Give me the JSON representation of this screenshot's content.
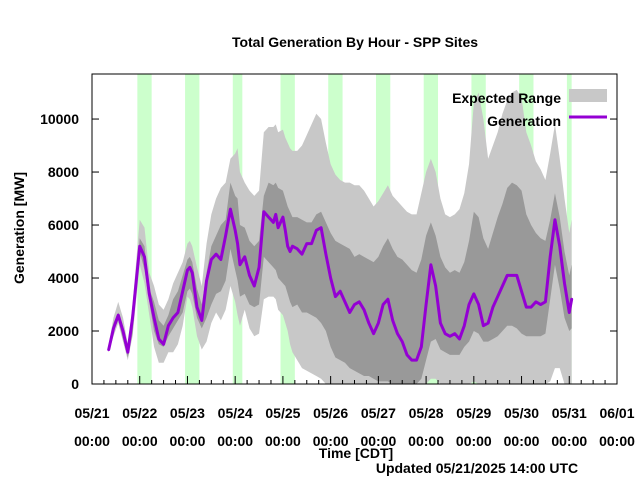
{
  "chart_data": {
    "type": "area",
    "title": "Total Generation By Hour - SPP Sites",
    "xlabel": "Time [CDT]",
    "ylabel": "Generation [MW]",
    "updated": "Updated 05/21/2025 14:00 UTC",
    "xlim": [
      0,
      11
    ],
    "ylim": [
      0,
      11700
    ],
    "x_units": "days since 05/21 00:00",
    "y_ticks": [
      0,
      2000,
      4000,
      6000,
      8000,
      10000
    ],
    "x_ticks": [
      {
        "x": 0,
        "date": "05/21",
        "time": "00:00"
      },
      {
        "x": 1,
        "date": "05/22",
        "time": "00:00"
      },
      {
        "x": 2,
        "date": "05/23",
        "time": "00:00"
      },
      {
        "x": 3,
        "date": "05/24",
        "time": "00:00"
      },
      {
        "x": 4,
        "date": "05/25",
        "time": "00:00"
      },
      {
        "x": 5,
        "date": "05/26",
        "time": "00:00"
      },
      {
        "x": 6,
        "date": "05/27",
        "time": "00:00"
      },
      {
        "x": 7,
        "date": "05/28",
        "time": "00:00"
      },
      {
        "x": 8,
        "date": "05/29",
        "time": "00:00"
      },
      {
        "x": 9,
        "date": "05/30",
        "time": "00:00"
      },
      {
        "x": 10,
        "date": "05/31",
        "time": "00:00"
      },
      {
        "x": 11,
        "date": "06/01",
        "time": "00:00"
      }
    ],
    "legend": {
      "placement": "top-right",
      "entries": [
        "Expected Range",
        "Generation"
      ]
    },
    "colors": {
      "outer_band": "#c8c8c8",
      "inner_band": "#999999",
      "generation": "#9400d3",
      "night_shade": "#ccffcc"
    },
    "shaded_intervals": [
      [
        0.95,
        1.25
      ],
      [
        1.95,
        2.25
      ],
      [
        2.95,
        3.15
      ],
      [
        3.95,
        4.25
      ],
      [
        4.95,
        5.25
      ],
      [
        5.95,
        6.25
      ],
      [
        6.95,
        7.25
      ],
      [
        7.95,
        8.25
      ],
      [
        8.95,
        9.25
      ],
      [
        9.95,
        10.05
      ]
    ],
    "series": [
      {
        "name": "Generation",
        "x": [
          0.35,
          0.45,
          0.55,
          0.65,
          0.75,
          0.85,
          1.0,
          1.1,
          1.2,
          1.3,
          1.4,
          1.5,
          1.6,
          1.7,
          1.8,
          1.9,
          2.0,
          2.05,
          2.1,
          2.2,
          2.3,
          2.4,
          2.5,
          2.6,
          2.7,
          2.8,
          2.9,
          3.0,
          3.05,
          3.1,
          3.2,
          3.3,
          3.4,
          3.5,
          3.6,
          3.7,
          3.8,
          3.85,
          3.9,
          4.0,
          4.05,
          4.1,
          4.15,
          4.2,
          4.3,
          4.4,
          4.5,
          4.6,
          4.7,
          4.8,
          4.9,
          5.0,
          5.1,
          5.2,
          5.3,
          5.4,
          5.5,
          5.6,
          5.7,
          5.8,
          5.9,
          6.0,
          6.1,
          6.2,
          6.3,
          6.4,
          6.5,
          6.6,
          6.7,
          6.8,
          6.9,
          7.0,
          7.1,
          7.2,
          7.3,
          7.4,
          7.5,
          7.6,
          7.7,
          7.8,
          7.9,
          8.0,
          8.1,
          8.2,
          8.3,
          8.4,
          8.5,
          8.6,
          8.7,
          8.8,
          8.9,
          9.0,
          9.1,
          9.2,
          9.3,
          9.4,
          9.5,
          9.6,
          9.7,
          9.8,
          9.9,
          10.0,
          10.05
        ],
        "values": [
          1300,
          2100,
          2600,
          2000,
          1200,
          2500,
          5200,
          4800,
          3400,
          2500,
          1700,
          1500,
          2200,
          2500,
          2700,
          3500,
          4300,
          4400,
          4200,
          2900,
          2400,
          3900,
          4700,
          4900,
          4700,
          5600,
          6600,
          5800,
          5300,
          4500,
          4800,
          4100,
          3700,
          4400,
          6500,
          6300,
          6100,
          6400,
          5900,
          6300,
          5800,
          5200,
          5000,
          5200,
          5100,
          4900,
          5300,
          5300,
          5800,
          5900,
          4900,
          4000,
          3300,
          3500,
          3100,
          2700,
          3000,
          3100,
          2800,
          2300,
          1900,
          2300,
          3000,
          3200,
          2400,
          1900,
          1600,
          1100,
          900,
          900,
          1400,
          3000,
          4500,
          3700,
          2300,
          1900,
          1800,
          1900,
          1700,
          2200,
          3000,
          3400,
          3000,
          2200,
          2300,
          2900,
          3300,
          3700,
          4100,
          4100,
          4100,
          3500,
          2900,
          2900,
          3100,
          3000,
          3100,
          4800,
          6200,
          5200,
          3800,
          2700,
          3200
        ]
      },
      {
        "name": "Expected Range",
        "x": [
          0.35,
          0.45,
          0.55,
          0.65,
          0.75,
          0.85,
          1.0,
          1.1,
          1.2,
          1.3,
          1.4,
          1.5,
          1.6,
          1.7,
          1.8,
          1.9,
          2.0,
          2.05,
          2.1,
          2.2,
          2.3,
          2.4,
          2.5,
          2.6,
          2.7,
          2.8,
          2.9,
          3.0,
          3.05,
          3.1,
          3.2,
          3.3,
          3.4,
          3.5,
          3.6,
          3.7,
          3.8,
          3.85,
          3.9,
          4.0,
          4.05,
          4.1,
          4.15,
          4.2,
          4.3,
          4.4,
          4.5,
          4.6,
          4.7,
          4.8,
          4.9,
          5.0,
          5.1,
          5.2,
          5.3,
          5.4,
          5.5,
          5.6,
          5.7,
          5.8,
          5.9,
          6.0,
          6.1,
          6.2,
          6.3,
          6.4,
          6.5,
          6.6,
          6.7,
          6.8,
          6.9,
          7.0,
          7.1,
          7.2,
          7.3,
          7.4,
          7.5,
          7.6,
          7.7,
          7.8,
          7.9,
          8.0,
          8.1,
          8.2,
          8.3,
          8.4,
          8.5,
          8.6,
          8.7,
          8.8,
          8.9,
          9.0,
          9.1,
          9.2,
          9.3,
          9.4,
          9.5,
          9.6,
          9.7,
          9.8,
          9.9,
          10.0,
          10.05
        ],
        "outer_low": [
          1200,
          1800,
          2300,
          1600,
          900,
          1800,
          4500,
          3800,
          2600,
          1400,
          800,
          800,
          1200,
          1200,
          1500,
          2200,
          3300,
          3200,
          2900,
          1800,
          1300,
          1600,
          2300,
          2700,
          2400,
          2800,
          3700,
          3100,
          2600,
          2200,
          2800,
          2100,
          1800,
          1900,
          3200,
          3300,
          3300,
          3200,
          2800,
          2600,
          2300,
          2000,
          1500,
          1200,
          900,
          600,
          500,
          400,
          300,
          200,
          0,
          0,
          0,
          0,
          0,
          0,
          0,
          0,
          0,
          0,
          0,
          0,
          0,
          0,
          0,
          0,
          0,
          0,
          0,
          0,
          0,
          0,
          200,
          200,
          0,
          0,
          0,
          0,
          0,
          0,
          0,
          100,
          0,
          0,
          0,
          0,
          0,
          0,
          0,
          0,
          0,
          0,
          0,
          0,
          0,
          0,
          0,
          100,
          600,
          600,
          0,
          0,
          0
        ],
        "inner_low": [
          1200,
          2000,
          2400,
          1700,
          1000,
          1900,
          5000,
          4300,
          3100,
          2000,
          1500,
          1400,
          1800,
          2100,
          2400,
          2700,
          3500,
          3600,
          3400,
          2500,
          2100,
          2500,
          3000,
          3400,
          3500,
          3900,
          5100,
          4300,
          3900,
          3300,
          3400,
          3000,
          2900,
          3000,
          4800,
          4600,
          4400,
          4300,
          4000,
          3800,
          3700,
          3400,
          3100,
          2900,
          3000,
          2700,
          2700,
          2600,
          2500,
          2300,
          2000,
          1400,
          1000,
          900,
          800,
          600,
          500,
          400,
          300,
          300,
          200,
          100,
          100,
          100,
          0,
          0,
          0,
          0,
          0,
          0,
          200,
          900,
          1600,
          1700,
          1300,
          1200,
          1100,
          1100,
          1100,
          1400,
          1600,
          2000,
          1900,
          1600,
          1600,
          1700,
          1800,
          2000,
          2200,
          2200,
          2100,
          1900,
          1800,
          1800,
          1800,
          1800,
          1900,
          3200,
          4500,
          3600,
          2500,
          2000,
          2100
        ],
        "inner_high": [
          1400,
          2300,
          2700,
          2200,
          1300,
          2700,
          5500,
          5200,
          3600,
          3100,
          2400,
          2200,
          2600,
          3200,
          3500,
          4100,
          4700,
          4800,
          4600,
          3600,
          3000,
          4200,
          5200,
          5600,
          6000,
          6200,
          7600,
          7100,
          7000,
          6000,
          5900,
          5400,
          5200,
          5400,
          7100,
          7600,
          7500,
          7600,
          7400,
          7300,
          7000,
          6700,
          6500,
          6300,
          6300,
          6200,
          6100,
          6100,
          6400,
          6500,
          6100,
          5700,
          5400,
          5300,
          5200,
          5100,
          4800,
          4900,
          4800,
          4700,
          4600,
          4800,
          5200,
          5500,
          5100,
          4800,
          4700,
          4500,
          4300,
          4200,
          4700,
          5600,
          6100,
          5600,
          4800,
          4400,
          4200,
          4300,
          4200,
          4600,
          5400,
          6500,
          6300,
          5500,
          5100,
          5700,
          6300,
          6800,
          7400,
          7600,
          7500,
          7300,
          6400,
          6000,
          5700,
          5500,
          5400,
          6200,
          7200,
          6300,
          5000,
          4100,
          4500
        ],
        "outer_high": [
          1500,
          2500,
          3100,
          2500,
          1500,
          3000,
          6200,
          5900,
          4200,
          3700,
          3000,
          2800,
          3200,
          3800,
          4200,
          4600,
          5300,
          5400,
          5200,
          4400,
          3700,
          5300,
          6400,
          7000,
          7400,
          7600,
          8500,
          8700,
          8900,
          8000,
          7600,
          7300,
          7100,
          7300,
          9500,
          9700,
          9700,
          9800,
          9500,
          9600,
          9300,
          9100,
          8900,
          8800,
          8800,
          9000,
          9400,
          9800,
          10200,
          10000,
          9100,
          8300,
          7900,
          7700,
          7600,
          7600,
          7500,
          7500,
          7300,
          7000,
          6700,
          6900,
          7200,
          7500,
          7100,
          6900,
          6700,
          6500,
          6400,
          6400,
          7200,
          8000,
          8500,
          8000,
          7000,
          6400,
          6300,
          6400,
          6600,
          7200,
          8300,
          10600,
          11000,
          10000,
          8500,
          9000,
          9500,
          10200,
          10700,
          11000,
          11100,
          10800,
          9500,
          9000,
          8400,
          8100,
          7700,
          8700,
          9800,
          8500,
          7000,
          5700,
          6200
        ]
      }
    ]
  }
}
